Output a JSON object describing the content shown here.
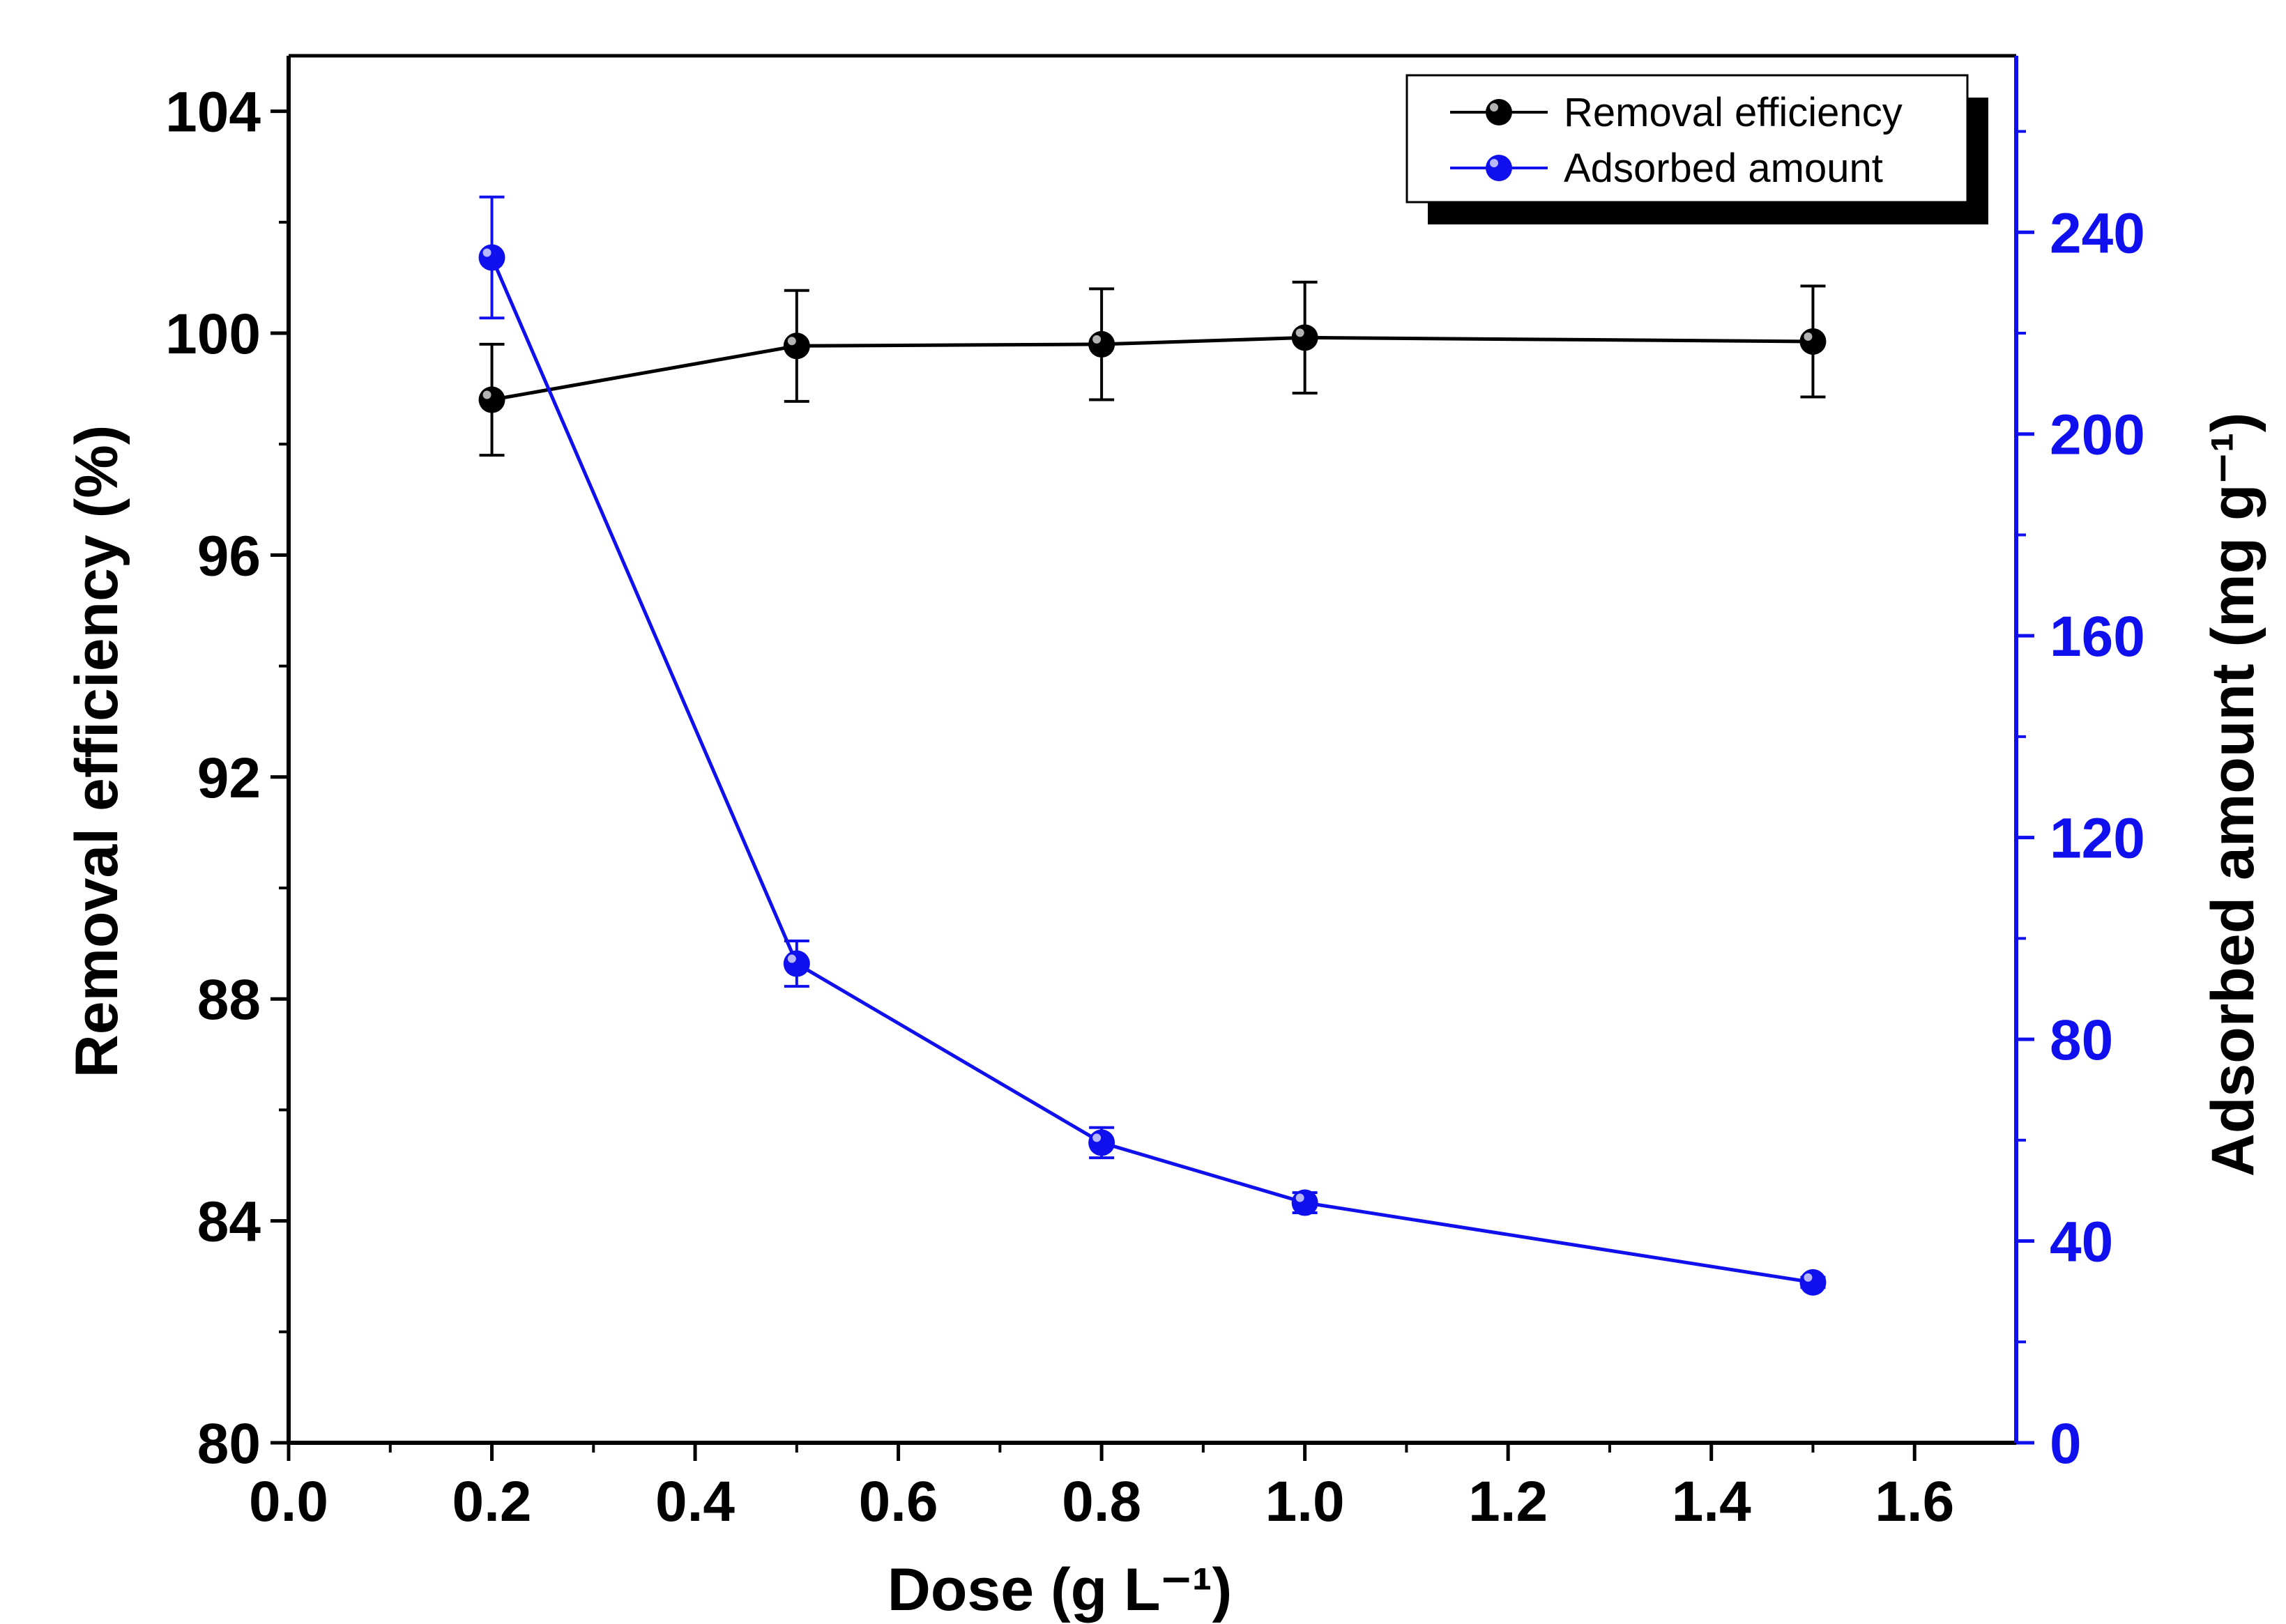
{
  "chart_data": {
    "type": "line",
    "title": "",
    "xlabel": "Dose (g L⁻¹)",
    "ylabel_left": "Removal efficiency (%)",
    "ylabel_right": "Adsorbed amount (mg g⁻¹)",
    "xlim": [
      0.0,
      1.7
    ],
    "ylim_left": [
      80,
      105
    ],
    "ylim_right": [
      0,
      275
    ],
    "x_ticks": [
      "0.0",
      "0.2",
      "0.4",
      "0.6",
      "0.8",
      "1.0",
      "1.2",
      "1.4",
      "1.6"
    ],
    "y_ticks_left": [
      "80",
      "84",
      "88",
      "92",
      "96",
      "100",
      "104"
    ],
    "y_ticks_right": [
      "0",
      "40",
      "80",
      "120",
      "160",
      "200",
      "240"
    ],
    "grid": false,
    "legend_position": "top-right",
    "series": [
      {
        "name": "Removal efficiency",
        "axis": "left",
        "color": "#000000",
        "x": [
          0.2,
          0.5,
          0.8,
          1.0,
          1.5
        ],
        "values": [
          98.8,
          99.77,
          99.8,
          99.92,
          99.85
        ],
        "errors": [
          1.0,
          1.0,
          1.0,
          1.0,
          1.0
        ]
      },
      {
        "name": "Adsorbed amount",
        "axis": "right",
        "color": "#1010ee",
        "x": [
          0.2,
          0.5,
          0.8,
          1.0,
          1.5
        ],
        "values": [
          235,
          95,
          59.5,
          47.6,
          31.8
        ],
        "errors": [
          12,
          4.5,
          3,
          2,
          1
        ]
      }
    ]
  }
}
